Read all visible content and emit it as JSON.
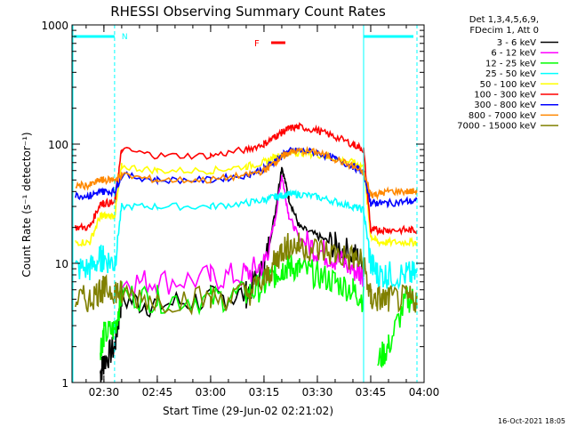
{
  "chart_data": {
    "type": "line",
    "title": "RHESSI Observing Summary Count Rates",
    "xlabel": "Start Time (29-Jun-02 02:21:02)",
    "ylabel": "Count Rate (s⁻¹ detector⁻¹)",
    "y_scale": "log",
    "ylim": [
      1,
      1000
    ],
    "xlim": [
      "02:21:02",
      "04:00"
    ],
    "x_ticks": [
      "02:30",
      "02:45",
      "03:00",
      "03:15",
      "03:30",
      "03:45",
      "04:00"
    ],
    "y_ticks": [
      "1",
      "10",
      "100",
      "1000"
    ],
    "legend_header": [
      "Det 1,3,4,5,6,9,",
      "FDecim 1, Att 0"
    ],
    "legend_position": "right",
    "flag_labels": {
      "night": "N",
      "flare": "F"
    },
    "timestamp": "16-Oct-2021 18:05",
    "x_time_points": [
      "02:22",
      "02:26",
      "02:29",
      "02:30",
      "02:33",
      "02:35",
      "02:45",
      "03:00",
      "03:10",
      "03:15",
      "03:18",
      "03:20",
      "03:22",
      "03:25",
      "03:30",
      "03:35",
      "03:40",
      "03:43",
      "03:45",
      "03:47",
      "03:50",
      "03:55",
      "03:58"
    ],
    "series": [
      {
        "name": "3 - 6 keV",
        "color": "#000000",
        "values": [
          null,
          null,
          1.2,
          1.5,
          2.0,
          5,
          4.5,
          5,
          5.5,
          9,
          25,
          65,
          35,
          20,
          17,
          14,
          12,
          10,
          null,
          null,
          null,
          null,
          null
        ]
      },
      {
        "name": "6 - 12 keV",
        "color": "#ff00ff",
        "values": [
          null,
          null,
          null,
          null,
          null,
          7,
          7,
          7.5,
          8,
          10,
          22,
          55,
          25,
          16,
          13,
          11,
          9,
          8,
          null,
          null,
          null,
          null,
          null
        ]
      },
      {
        "name": "12 - 25 keV",
        "color": "#00ff00",
        "values": [
          null,
          null,
          2,
          2.5,
          2.8,
          5.5,
          5,
          5,
          5.5,
          6.5,
          8,
          9,
          9.5,
          9,
          8,
          7,
          6,
          5,
          null,
          1.5,
          2,
          5,
          5
        ]
      },
      {
        "name": "25 - 50 keV",
        "color": "#00ffff",
        "values": [
          9,
          9,
          11,
          11,
          10,
          30,
          30,
          30,
          32,
          34,
          36,
          37,
          38,
          38,
          36,
          33,
          30,
          28,
          10,
          8,
          8,
          8,
          8
        ]
      },
      {
        "name": "50 - 100 keV",
        "color": "#ffff00",
        "values": [
          15,
          15,
          25,
          25,
          25,
          65,
          60,
          60,
          65,
          70,
          78,
          80,
          85,
          85,
          82,
          75,
          70,
          65,
          17,
          15,
          15,
          15,
          15
        ]
      },
      {
        "name": "100 - 300 keV",
        "color": "#ff0000",
        "values": [
          20,
          20,
          32,
          32,
          32,
          90,
          80,
          80,
          90,
          100,
          115,
          125,
          135,
          140,
          130,
          115,
          100,
          90,
          19,
          19,
          19,
          19,
          19
        ]
      },
      {
        "name": "300 - 800 keV",
        "color": "#0000ff",
        "values": [
          37,
          37,
          40,
          40,
          40,
          55,
          50,
          50,
          55,
          62,
          72,
          80,
          87,
          88,
          85,
          75,
          65,
          58,
          32,
          32,
          32,
          33,
          33
        ]
      },
      {
        "name": "800 - 7000 keV",
        "color": "#ff8800",
        "values": [
          45,
          45,
          50,
          50,
          50,
          55,
          50,
          50,
          55,
          60,
          70,
          78,
          85,
          88,
          85,
          75,
          65,
          57,
          38,
          38,
          40,
          40,
          40
        ]
      },
      {
        "name": "7000 - 15000 keV",
        "color": "#808000",
        "values": [
          5,
          5,
          6,
          6,
          6,
          5.5,
          5,
          5,
          5.5,
          7,
          10,
          13,
          14,
          14,
          13,
          12,
          11,
          10,
          5,
          5,
          5,
          5,
          5
        ]
      }
    ]
  }
}
